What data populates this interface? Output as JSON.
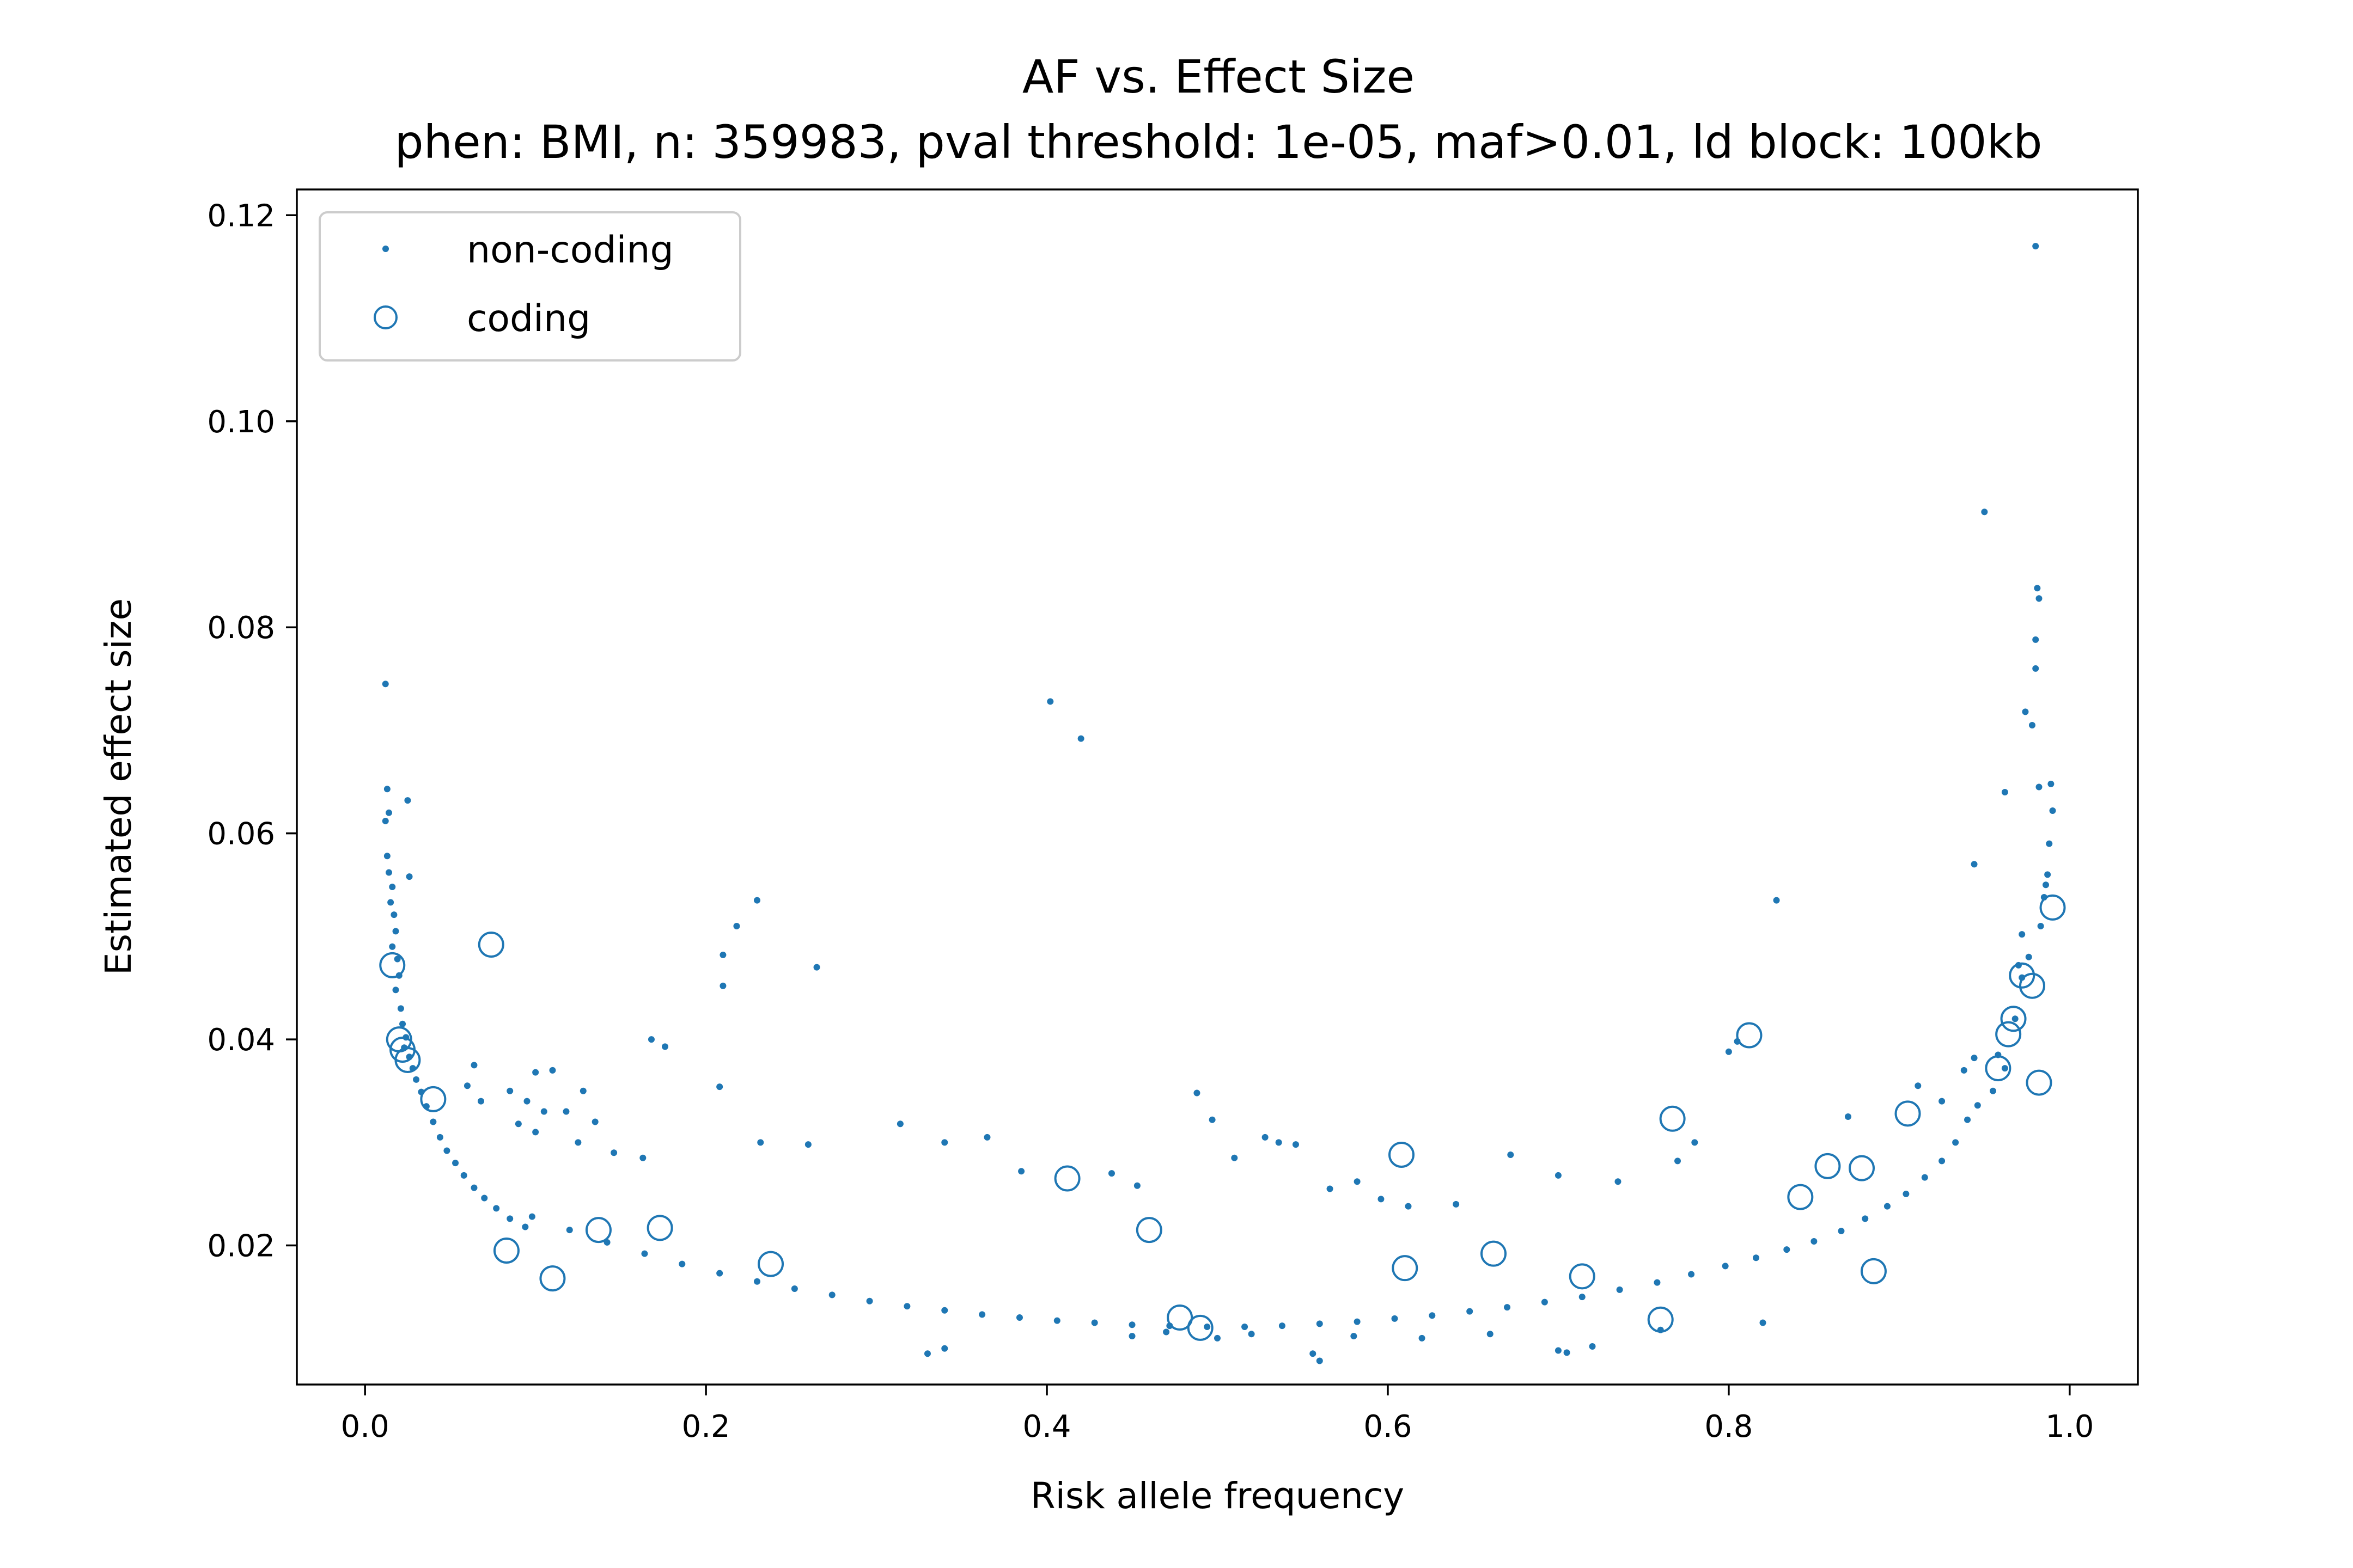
{
  "chart_data": {
    "type": "scatter",
    "title": "AF vs. Effect Size",
    "subtitle": "phen: BMI, n: 359983, pval threshold: 1e-05, maf>0.01, ld block: 100kb",
    "xlabel": "Risk allele frequency",
    "ylabel": "Estimated effect size",
    "xlim": [
      -0.04,
      1.04
    ],
    "ylim": [
      0.0065,
      0.1225
    ],
    "xticks": [
      {
        "value": 0.0,
        "label": "0.0"
      },
      {
        "value": 0.2,
        "label": "0.2"
      },
      {
        "value": 0.4,
        "label": "0.4"
      },
      {
        "value": 0.6,
        "label": "0.6"
      },
      {
        "value": 0.8,
        "label": "0.8"
      },
      {
        "value": 1.0,
        "label": "1.0"
      }
    ],
    "yticks": [
      {
        "value": 0.02,
        "label": "0.02"
      },
      {
        "value": 0.04,
        "label": "0.04"
      },
      {
        "value": 0.06,
        "label": "0.06"
      },
      {
        "value": 0.08,
        "label": "0.08"
      },
      {
        "value": 0.1,
        "label": "0.10"
      },
      {
        "value": 0.12,
        "label": "0.12"
      }
    ],
    "grid": false,
    "legend_position": "top-left",
    "color": "#1f77b4",
    "series": [
      {
        "name": "non-coding",
        "marker": "small-dot",
        "points": [
          [
            0.012,
            0.0745
          ],
          [
            0.013,
            0.0643
          ],
          [
            0.014,
            0.062
          ],
          [
            0.012,
            0.0612
          ],
          [
            0.013,
            0.0578
          ],
          [
            0.014,
            0.0562
          ],
          [
            0.016,
            0.0548
          ],
          [
            0.015,
            0.0533
          ],
          [
            0.017,
            0.0521
          ],
          [
            0.018,
            0.0505
          ],
          [
            0.016,
            0.049
          ],
          [
            0.019,
            0.0478
          ],
          [
            0.02,
            0.0462
          ],
          [
            0.018,
            0.0448
          ],
          [
            0.021,
            0.043
          ],
          [
            0.022,
            0.0415
          ],
          [
            0.024,
            0.0402
          ],
          [
            0.023,
            0.0392
          ],
          [
            0.026,
            0.0383
          ],
          [
            0.028,
            0.0372
          ],
          [
            0.025,
            0.0632
          ],
          [
            0.026,
            0.0558
          ],
          [
            0.03,
            0.0361
          ],
          [
            0.033,
            0.0349
          ],
          [
            0.036,
            0.0335
          ],
          [
            0.04,
            0.032
          ],
          [
            0.044,
            0.0305
          ],
          [
            0.048,
            0.0292
          ],
          [
            0.053,
            0.028
          ],
          [
            0.058,
            0.0268
          ],
          [
            0.064,
            0.0256
          ],
          [
            0.07,
            0.0246
          ],
          [
            0.077,
            0.0236
          ],
          [
            0.085,
            0.0226
          ],
          [
            0.094,
            0.0218
          ],
          [
            0.1,
            0.031
          ],
          [
            0.105,
            0.033
          ],
          [
            0.11,
            0.037
          ],
          [
            0.118,
            0.033
          ],
          [
            0.125,
            0.03
          ],
          [
            0.06,
            0.0355
          ],
          [
            0.064,
            0.0375
          ],
          [
            0.068,
            0.034
          ],
          [
            0.085,
            0.035
          ],
          [
            0.09,
            0.0318
          ],
          [
            0.095,
            0.034
          ],
          [
            0.1,
            0.0368
          ],
          [
            0.128,
            0.035
          ],
          [
            0.135,
            0.032
          ],
          [
            0.146,
            0.029
          ],
          [
            0.163,
            0.0285
          ],
          [
            0.168,
            0.04
          ],
          [
            0.176,
            0.0393
          ],
          [
            0.21,
            0.0452
          ],
          [
            0.21,
            0.0482
          ],
          [
            0.218,
            0.051
          ],
          [
            0.23,
            0.0535
          ],
          [
            0.265,
            0.047
          ],
          [
            0.208,
            0.0354
          ],
          [
            0.232,
            0.03
          ],
          [
            0.26,
            0.0298
          ],
          [
            0.314,
            0.0318
          ],
          [
            0.34,
            0.03
          ],
          [
            0.365,
            0.0305
          ],
          [
            0.385,
            0.0272
          ],
          [
            0.402,
            0.0728
          ],
          [
            0.42,
            0.0692
          ],
          [
            0.438,
            0.027
          ],
          [
            0.453,
            0.0258
          ],
          [
            0.488,
            0.0348
          ],
          [
            0.497,
            0.0322
          ],
          [
            0.51,
            0.0285
          ],
          [
            0.528,
            0.0305
          ],
          [
            0.536,
            0.03
          ],
          [
            0.546,
            0.0298
          ],
          [
            0.566,
            0.0255
          ],
          [
            0.582,
            0.0262
          ],
          [
            0.596,
            0.0245
          ],
          [
            0.612,
            0.0238
          ],
          [
            0.64,
            0.024
          ],
          [
            0.672,
            0.0288
          ],
          [
            0.7,
            0.0268
          ],
          [
            0.735,
            0.0262
          ],
          [
            0.77,
            0.0282
          ],
          [
            0.78,
            0.03
          ],
          [
            0.8,
            0.0388
          ],
          [
            0.805,
            0.0398
          ],
          [
            0.828,
            0.0535
          ],
          [
            0.87,
            0.0325
          ],
          [
            0.911,
            0.0355
          ],
          [
            0.925,
            0.034
          ],
          [
            0.938,
            0.037
          ],
          [
            0.944,
            0.0382
          ],
          [
            0.95,
            0.0912
          ],
          [
            0.958,
            0.0385
          ],
          [
            0.962,
            0.064
          ],
          [
            0.944,
            0.057
          ],
          [
            0.97,
            0.0472
          ],
          [
            0.972,
            0.0502
          ],
          [
            0.974,
            0.0718
          ],
          [
            0.978,
            0.0705
          ],
          [
            0.98,
            0.117
          ],
          [
            0.981,
            0.0838
          ],
          [
            0.982,
            0.0828
          ],
          [
            0.98,
            0.0788
          ],
          [
            0.98,
            0.076
          ],
          [
            0.982,
            0.0645
          ],
          [
            0.989,
            0.0648
          ],
          [
            0.99,
            0.0622
          ],
          [
            0.988,
            0.059
          ],
          [
            0.987,
            0.056
          ],
          [
            0.986,
            0.055
          ],
          [
            0.985,
            0.0538
          ],
          [
            0.983,
            0.051
          ],
          [
            0.976,
            0.048
          ],
          [
            0.972,
            0.046
          ],
          [
            0.968,
            0.042
          ],
          [
            0.962,
            0.0372
          ],
          [
            0.955,
            0.035
          ],
          [
            0.946,
            0.0336
          ],
          [
            0.94,
            0.0322
          ],
          [
            0.933,
            0.03
          ],
          [
            0.925,
            0.0282
          ],
          [
            0.915,
            0.0266
          ],
          [
            0.904,
            0.025
          ],
          [
            0.893,
            0.0238
          ],
          [
            0.88,
            0.0226
          ],
          [
            0.866,
            0.0214
          ],
          [
            0.85,
            0.0204
          ],
          [
            0.834,
            0.0196
          ],
          [
            0.816,
            0.0188
          ],
          [
            0.798,
            0.018
          ],
          [
            0.778,
            0.0172
          ],
          [
            0.758,
            0.0164
          ],
          [
            0.736,
            0.0157
          ],
          [
            0.714,
            0.015
          ],
          [
            0.692,
            0.0145
          ],
          [
            0.67,
            0.014
          ],
          [
            0.648,
            0.0136
          ],
          [
            0.626,
            0.0132
          ],
          [
            0.604,
            0.0129
          ],
          [
            0.582,
            0.0126
          ],
          [
            0.56,
            0.0124
          ],
          [
            0.538,
            0.0122
          ],
          [
            0.516,
            0.0121
          ],
          [
            0.494,
            0.0121
          ],
          [
            0.472,
            0.0122
          ],
          [
            0.45,
            0.0123
          ],
          [
            0.428,
            0.0125
          ],
          [
            0.406,
            0.0127
          ],
          [
            0.384,
            0.013
          ],
          [
            0.362,
            0.0133
          ],
          [
            0.34,
            0.0137
          ],
          [
            0.318,
            0.0141
          ],
          [
            0.296,
            0.0146
          ],
          [
            0.274,
            0.0152
          ],
          [
            0.252,
            0.0158
          ],
          [
            0.23,
            0.0165
          ],
          [
            0.208,
            0.0173
          ],
          [
            0.186,
            0.0182
          ],
          [
            0.164,
            0.0192
          ],
          [
            0.142,
            0.0203
          ],
          [
            0.12,
            0.0215
          ],
          [
            0.098,
            0.0228
          ],
          [
            0.56,
            0.0088
          ],
          [
            0.556,
            0.0095
          ],
          [
            0.33,
            0.0095
          ],
          [
            0.34,
            0.01
          ],
          [
            0.7,
            0.0098
          ],
          [
            0.705,
            0.0096
          ],
          [
            0.72,
            0.0102
          ],
          [
            0.62,
            0.011
          ],
          [
            0.45,
            0.0112
          ],
          [
            0.5,
            0.011
          ],
          [
            0.47,
            0.0116
          ],
          [
            0.52,
            0.0114
          ],
          [
            0.58,
            0.0112
          ],
          [
            0.66,
            0.0114
          ],
          [
            0.76,
            0.0118
          ],
          [
            0.82,
            0.0125
          ]
        ]
      },
      {
        "name": "coding",
        "marker": "open-circle",
        "points": [
          [
            0.016,
            0.0472
          ],
          [
            0.02,
            0.04
          ],
          [
            0.022,
            0.039
          ],
          [
            0.025,
            0.038
          ],
          [
            0.04,
            0.0342
          ],
          [
            0.074,
            0.0492
          ],
          [
            0.083,
            0.0195
          ],
          [
            0.11,
            0.0168
          ],
          [
            0.137,
            0.0215
          ],
          [
            0.173,
            0.0217
          ],
          [
            0.238,
            0.0182
          ],
          [
            0.412,
            0.0265
          ],
          [
            0.46,
            0.0215
          ],
          [
            0.478,
            0.013
          ],
          [
            0.49,
            0.012
          ],
          [
            0.608,
            0.0288
          ],
          [
            0.61,
            0.0178
          ],
          [
            0.662,
            0.0192
          ],
          [
            0.714,
            0.017
          ],
          [
            0.76,
            0.0128
          ],
          [
            0.767,
            0.0323
          ],
          [
            0.812,
            0.0404
          ],
          [
            0.842,
            0.0247
          ],
          [
            0.858,
            0.0277
          ],
          [
            0.878,
            0.0275
          ],
          [
            0.885,
            0.0175
          ],
          [
            0.905,
            0.0328
          ],
          [
            0.958,
            0.0372
          ],
          [
            0.964,
            0.0405
          ],
          [
            0.967,
            0.042
          ],
          [
            0.972,
            0.0462
          ],
          [
            0.978,
            0.0452
          ],
          [
            0.982,
            0.0358
          ],
          [
            0.99,
            0.0528
          ]
        ]
      }
    ]
  }
}
